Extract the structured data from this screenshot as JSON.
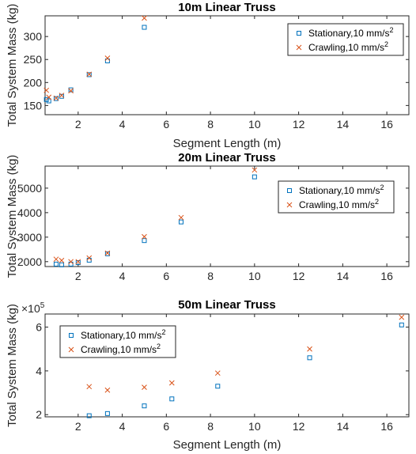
{
  "colors": {
    "stationary": "#0072BD",
    "crawling": "#D95319"
  },
  "chart_data": [
    {
      "type": "scatter",
      "title": "10m Linear Truss",
      "xlabel": "Segment Length (m)",
      "ylabel": "Total System Mass (kg)",
      "xlim": [
        0.5,
        17
      ],
      "ylim": [
        130,
        345
      ],
      "xticks": [
        2,
        4,
        6,
        8,
        10,
        12,
        14,
        16
      ],
      "yticks": [
        150,
        200,
        250,
        300
      ],
      "legend_position": "top-right",
      "series": [
        {
          "name": "Stationary,10 mm/s",
          "marker": "square",
          "x": [
            0.56,
            0.67,
            1.0,
            1.25,
            1.67,
            2.5,
            3.33,
            5.0
          ],
          "y": [
            163,
            160,
            165,
            170,
            184,
            217,
            247,
            320
          ]
        },
        {
          "name": "Crawling,10 mm/s",
          "marker": "x",
          "x": [
            0.56,
            0.67,
            1.0,
            1.25,
            1.67,
            2.5,
            3.33,
            5.0
          ],
          "y": [
            183,
            168,
            166,
            172,
            182,
            218,
            253,
            340
          ]
        }
      ]
    },
    {
      "type": "scatter",
      "title": "20m Linear Truss",
      "xlabel": "",
      "ylabel": "Total System Mass (kg)",
      "xlim": [
        0.5,
        17
      ],
      "ylim": [
        1800,
        5900
      ],
      "xticks": [
        2,
        4,
        6,
        8,
        10,
        12,
        14,
        16
      ],
      "yticks": [
        2000,
        3000,
        4000,
        5000
      ],
      "legend_position": "top-right",
      "series": [
        {
          "name": "Stationary,10 mm/s",
          "marker": "square",
          "x": [
            1.0,
            1.25,
            1.67,
            2.0,
            2.5,
            3.33,
            5.0,
            6.67,
            10.0
          ],
          "y": [
            1900,
            1870,
            1900,
            1960,
            2060,
            2320,
            2860,
            3620,
            5460
          ]
        },
        {
          "name": "Crawling,10 mm/s",
          "marker": "x",
          "x": [
            1.0,
            1.25,
            1.67,
            2.0,
            2.5,
            3.33,
            5.0,
            6.67,
            10.0
          ],
          "y": [
            2100,
            2050,
            2000,
            2000,
            2150,
            2350,
            3020,
            3800,
            5740
          ]
        }
      ]
    },
    {
      "type": "scatter",
      "title": "50m Linear Truss",
      "xlabel": "Segment Length (m)",
      "ylabel": "Total System Mass (kg)",
      "xlim": [
        0.5,
        17
      ],
      "ylim": [
        1.9,
        6.6
      ],
      "y_multiplier": "×10",
      "y_multiplier_exp": "5",
      "xticks": [
        2,
        4,
        6,
        8,
        10,
        12,
        14,
        16
      ],
      "yticks": [
        2,
        4,
        6
      ],
      "legend_position": "top-left",
      "series": [
        {
          "name": "Stationary,10 mm/s",
          "marker": "square",
          "x": [
            2.5,
            3.33,
            5.0,
            6.25,
            8.33,
            12.5,
            16.67
          ],
          "y": [
            1.95,
            2.05,
            2.4,
            2.72,
            3.3,
            4.6,
            6.1
          ]
        },
        {
          "name": "Crawling,10 mm/s",
          "marker": "x",
          "x": [
            2.5,
            3.33,
            5.0,
            6.25,
            8.33,
            12.5,
            16.67
          ],
          "y": [
            3.28,
            3.12,
            3.25,
            3.45,
            3.9,
            5.0,
            6.45
          ]
        }
      ]
    }
  ],
  "legend_superscript": "2"
}
